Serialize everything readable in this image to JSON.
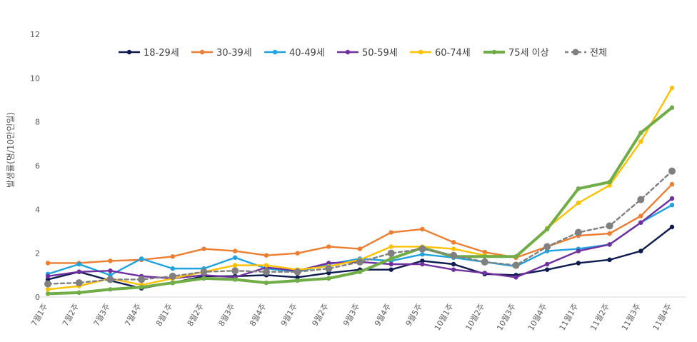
{
  "chart_data": {
    "type": "line",
    "title": "",
    "xlabel": "",
    "ylabel": "발생률(명/10만인일)",
    "ylim": [
      0,
      12
    ],
    "yticks": [
      0,
      2,
      4,
      6,
      8,
      10,
      12
    ],
    "grid": false,
    "legend_position": "top",
    "categories": [
      "7월1주",
      "7월2주",
      "7월3주",
      "7월4주",
      "8월1주",
      "8월2주",
      "8월3주",
      "8월4주",
      "9월1주",
      "9월2주",
      "9월3주",
      "9월4주",
      "9월5주",
      "10월1주",
      "10월2주",
      "10월3주",
      "10월4주",
      "11월1주",
      "11월2주",
      "11월3주",
      "11월4주"
    ],
    "series": [
      {
        "name": "18-29세",
        "color": "#0d1b4f",
        "dashed": false,
        "thick": false,
        "values": [
          0.8,
          1.15,
          0.75,
          0.4,
          0.65,
          0.95,
          0.95,
          1.0,
          0.9,
          1.1,
          1.25,
          1.25,
          1.65,
          1.5,
          1.05,
          1.0,
          1.25,
          1.55,
          1.7,
          2.1,
          3.2
        ]
      },
      {
        "name": "30-39세",
        "color": "#ed7d31",
        "dashed": false,
        "thick": false,
        "values": [
          1.55,
          1.55,
          1.65,
          1.7,
          1.85,
          2.2,
          2.1,
          1.9,
          2.0,
          2.3,
          2.2,
          2.95,
          3.1,
          2.5,
          2.05,
          1.8,
          2.3,
          2.8,
          2.9,
          3.7,
          5.15
        ]
      },
      {
        "name": "40-49세",
        "color": "#1fa2df",
        "dashed": false,
        "thick": false,
        "values": [
          1.05,
          1.5,
          1.0,
          1.75,
          1.3,
          1.3,
          1.8,
          1.3,
          1.15,
          1.5,
          1.75,
          1.65,
          1.95,
          1.8,
          1.6,
          1.4,
          2.1,
          2.2,
          2.4,
          3.4,
          4.2
        ]
      },
      {
        "name": "50-59세",
        "color": "#7030a0",
        "dashed": false,
        "thick": false,
        "values": [
          0.95,
          1.15,
          1.2,
          0.95,
          0.85,
          1.0,
          0.9,
          1.35,
          1.2,
          1.55,
          1.6,
          1.5,
          1.5,
          1.25,
          1.1,
          0.9,
          1.5,
          2.1,
          2.4,
          3.4,
          4.5
        ]
      },
      {
        "name": "60-74세",
        "color": "#ffc000",
        "dashed": false,
        "thick": false,
        "values": [
          0.35,
          0.5,
          0.85,
          0.55,
          0.85,
          1.15,
          1.45,
          1.45,
          1.25,
          1.4,
          1.7,
          2.3,
          2.3,
          2.2,
          1.9,
          1.85,
          3.15,
          4.3,
          5.1,
          7.1,
          9.55
        ]
      },
      {
        "name": "75세 이상",
        "color": "#70ad47",
        "dashed": false,
        "thick": true,
        "values": [
          0.15,
          0.2,
          0.35,
          0.45,
          0.65,
          0.85,
          0.8,
          0.65,
          0.75,
          0.85,
          1.15,
          1.75,
          2.25,
          1.85,
          1.85,
          1.85,
          3.1,
          4.95,
          5.25,
          7.5,
          8.65
        ]
      },
      {
        "name": "전체",
        "color": "#808080",
        "dashed": true,
        "thick": false,
        "values": [
          0.6,
          0.65,
          0.8,
          0.8,
          0.95,
          1.15,
          1.2,
          1.15,
          1.15,
          1.3,
          1.6,
          2.0,
          2.2,
          1.9,
          1.6,
          1.45,
          2.3,
          2.95,
          3.25,
          4.45,
          5.75
        ]
      }
    ]
  }
}
